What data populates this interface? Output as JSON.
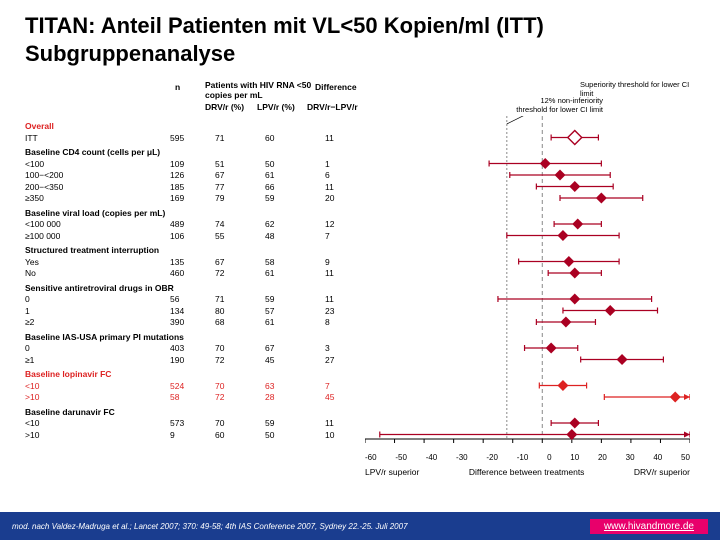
{
  "title": "TITAN: Anteil Patienten mit VL<50 Kopien/ml (ITT) Subgruppenanalyse",
  "citation": "mod. nach Valdez-Madruga et al.; Lancet 2007; 370: 49-58; 4th IAS Conference 2007, Sydney 22.-25. Juli 2007",
  "url": "www.hivandmore.de",
  "columns": {
    "n": "n",
    "patients": "Patients with HIV RNA <50 copies per mL",
    "drv": "DRV/r (%)",
    "lpv": "LPV/r (%)",
    "diff": "Difference",
    "diffsub": "DRV/r−LPV/r"
  },
  "annotations": {
    "superiority": "Superiority threshold for lower CI limit",
    "noninferiority": "12% non-inferiority threshold for lower CI limit"
  },
  "axis": {
    "min": -60,
    "max": 50,
    "step": 10,
    "left_label": "LPV/r superior",
    "center_label": "Difference between treatments",
    "right_label": "DRV/r superior"
  },
  "colors": {
    "text": "#000000",
    "red": "#dd2222",
    "marker": "#aa0022",
    "marker_open": "#ffffff",
    "axis": "#000000",
    "ref_line": "#888888",
    "bg": "#ffffff",
    "slide_bg": "#1a3d8f",
    "badge_bg": "#e8006b"
  },
  "groups": [
    {
      "label": "Overall",
      "red": true,
      "rows": [
        {
          "label": "ITT",
          "n": 595,
          "drv": 71,
          "lpv": 60,
          "diff": 11,
          "lo": 3,
          "hi": 19,
          "open": true
        }
      ]
    },
    {
      "label": "Baseline CD4 count (cells per μL)",
      "rows": [
        {
          "label": "<100",
          "n": 109,
          "drv": 51,
          "lpv": 50,
          "diff": 1,
          "lo": -18,
          "hi": 20
        },
        {
          "label": "100−<200",
          "n": 126,
          "drv": 67,
          "lpv": 61,
          "diff": 6,
          "lo": -11,
          "hi": 23
        },
        {
          "label": "200−<350",
          "n": 185,
          "drv": 77,
          "lpv": 66,
          "diff": 11,
          "lo": -2,
          "hi": 24
        },
        {
          "label": "≥350",
          "n": 169,
          "drv": 79,
          "lpv": 59,
          "diff": 20,
          "lo": 6,
          "hi": 34
        }
      ]
    },
    {
      "label": "Baseline viral load (copies per mL)",
      "rows": [
        {
          "label": "<100 000",
          "n": 489,
          "drv": 74,
          "lpv": 62,
          "diff": 12,
          "lo": 4,
          "hi": 20
        },
        {
          "label": "≥100 000",
          "n": 106,
          "drv": 55,
          "lpv": 48,
          "diff": 7,
          "lo": -12,
          "hi": 26
        }
      ]
    },
    {
      "label": "Structured treatment interruption",
      "rows": [
        {
          "label": "Yes",
          "n": 135,
          "drv": 67,
          "lpv": 58,
          "diff": 9,
          "lo": -8,
          "hi": 26
        },
        {
          "label": "No",
          "n": 460,
          "drv": 72,
          "lpv": 61,
          "diff": 11,
          "lo": 2,
          "hi": 20
        }
      ]
    },
    {
      "label": "Sensitive antiretroviral drugs in OBR",
      "rows": [
        {
          "label": "0",
          "n": 56,
          "drv": 71,
          "lpv": 59,
          "diff": 11,
          "lo": -15,
          "hi": 37
        },
        {
          "label": "1",
          "n": 134,
          "drv": 80,
          "lpv": 57,
          "diff": 23,
          "lo": 7,
          "hi": 39
        },
        {
          "label": "≥2",
          "n": 390,
          "drv": 68,
          "lpv": 61,
          "diff": 8,
          "lo": -2,
          "hi": 18
        }
      ]
    },
    {
      "label": "Baseline IAS-USA primary PI mutations",
      "rows": [
        {
          "label": "0",
          "n": 403,
          "drv": 70,
          "lpv": 67,
          "diff": 3,
          "lo": -6,
          "hi": 12
        },
        {
          "label": "≥1",
          "n": 190,
          "drv": 72,
          "lpv": 45,
          "diff": 27,
          "lo": 13,
          "hi": 41
        }
      ]
    },
    {
      "label": "Baseline lopinavir FC",
      "red": true,
      "rows": [
        {
          "label": "<10",
          "n": 524,
          "drv": 70,
          "lpv": 63,
          "diff": 7,
          "lo": -1,
          "hi": 15,
          "red": true
        },
        {
          "label": ">10",
          "n": 58,
          "drv": 72,
          "lpv": 28,
          "diff": 45,
          "lo": 21,
          "hi": 69,
          "red": true
        }
      ]
    },
    {
      "label": "Baseline darunavir FC",
      "rows": [
        {
          "label": "<10",
          "n": 573,
          "drv": 70,
          "lpv": 59,
          "diff": 11,
          "lo": 3,
          "hi": 19
        },
        {
          "label": ">10",
          "n": 9,
          "drv": 60,
          "lpv": 50,
          "diff": 10,
          "lo": -55,
          "hi": 75
        }
      ]
    }
  ]
}
